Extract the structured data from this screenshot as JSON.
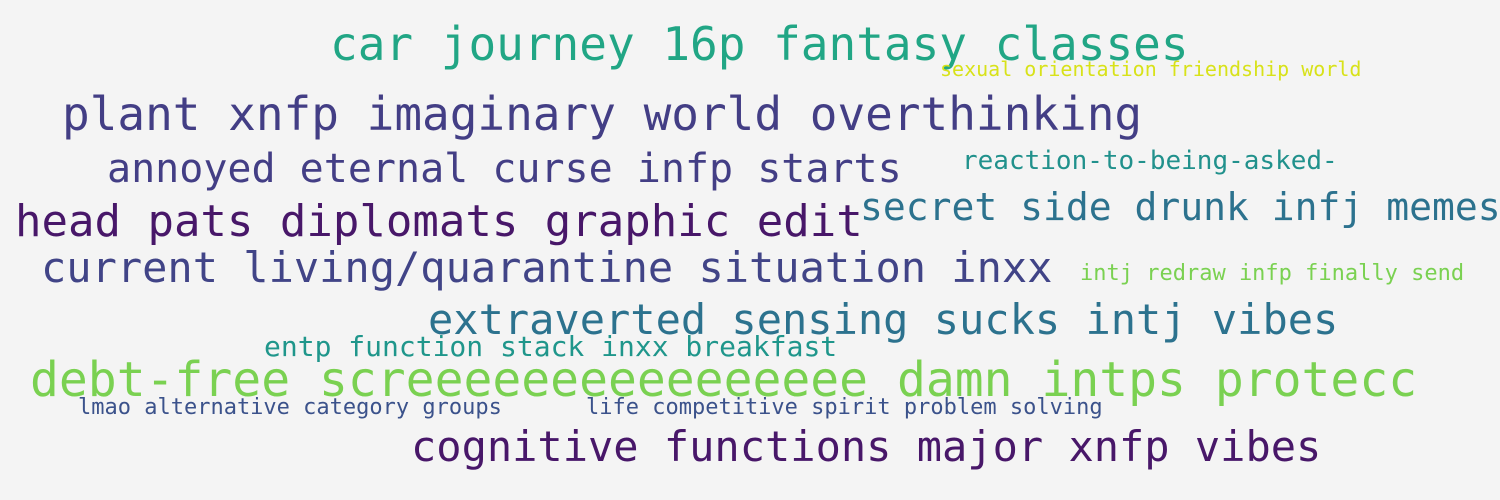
{
  "word_cloud": {
    "background_color": "#f4f4f4",
    "words": [
      {
        "text": "car journey 16p fantasy classes",
        "color": "#21a685"
      },
      {
        "text": "sexual orientation friendship world",
        "color": "#d8e219"
      },
      {
        "text": "plant xnfp imaginary world overthinking",
        "color": "#433e85"
      },
      {
        "text": "annoyed eternal curse infp starts",
        "color": "#433e85"
      },
      {
        "text": "reaction-to-being-asked-",
        "color": "#21918c"
      },
      {
        "text": "head pats diplomats graphic edit",
        "color": "#481769"
      },
      {
        "text": "secret side drunk infj memes",
        "color": "#2c728e"
      },
      {
        "text": "current living/quarantine situation inxx",
        "color": "#414487"
      },
      {
        "text": "intj redraw infp finally send",
        "color": "#7ad151"
      },
      {
        "text": "extraverted sensing sucks intj vibes",
        "color": "#2c728e"
      },
      {
        "text": "entp function stack inxx breakfast",
        "color": "#1f968b"
      },
      {
        "text": "debt-free screeeeeeeeeeeeeeee damn intps protecc",
        "color": "#7ad151"
      },
      {
        "text": "lmao alternative category groups",
        "color": "#3b528b"
      },
      {
        "text": "life competitive spirit problem solving",
        "color": "#3b528b"
      },
      {
        "text": "cognitive functions major xnfp vibes",
        "color": "#481769"
      }
    ]
  }
}
